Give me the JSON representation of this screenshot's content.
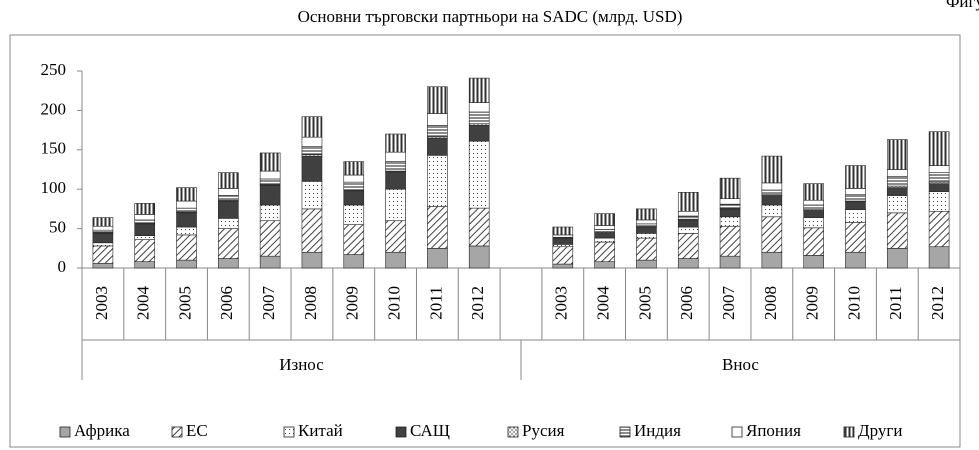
{
  "figure_label": "Фигура",
  "chart_data": {
    "type": "stacked_bar",
    "title": "Основни търговски партньори на SADC (млрд. USD)",
    "categories": [
      "2003",
      "2004",
      "2005",
      "2006",
      "2007",
      "2008",
      "2009",
      "2010",
      "2011",
      "2012",
      null,
      "2003",
      "2004",
      "2005",
      "2006",
      "2007",
      "2008",
      "2009",
      "2010",
      "2011",
      "2012"
    ],
    "groups": [
      "Износ",
      "Внос"
    ],
    "ylim": [
      0,
      250
    ],
    "yticks": [
      0,
      50,
      100,
      150,
      200,
      250
    ],
    "grid": false,
    "legend": "bottom",
    "series": [
      {
        "name": "Африка",
        "color": "#a6a6a6",
        "pattern": "solid",
        "values": [
          6,
          8,
          10,
          12,
          15,
          20,
          17,
          20,
          25,
          28,
          null,
          5,
          8,
          10,
          12,
          15,
          20,
          16,
          20,
          25,
          27
        ]
      },
      {
        "name": "ЕС",
        "color": "#404040",
        "pattern": "diagonal",
        "values": [
          22,
          28,
          32,
          38,
          45,
          55,
          38,
          40,
          53,
          48,
          null,
          22,
          25,
          28,
          32,
          38,
          45,
          35,
          38,
          45,
          45
        ]
      },
      {
        "name": "Китай",
        "color": "#404040",
        "pattern": "dots",
        "values": [
          4,
          5,
          10,
          13,
          20,
          35,
          25,
          40,
          65,
          85,
          null,
          3,
          5,
          6,
          8,
          12,
          15,
          13,
          16,
          22,
          25
        ]
      },
      {
        "name": "САЩ",
        "color": "#404040",
        "pattern": "solid",
        "values": [
          12,
          15,
          18,
          22,
          25,
          32,
          18,
          22,
          22,
          20,
          null,
          6,
          7,
          8,
          9,
          10,
          12,
          9,
          10,
          10,
          10
        ]
      },
      {
        "name": "Русия",
        "color": "#404040",
        "pattern": "crosshatch",
        "values": [
          1,
          1,
          1,
          1,
          1,
          2,
          1,
          1,
          2,
          2,
          null,
          1,
          1,
          1,
          1,
          1,
          1,
          1,
          1,
          2,
          2
        ]
      },
      {
        "name": "Индия",
        "color": "#404040",
        "pattern": "hlines",
        "values": [
          3,
          4,
          5,
          6,
          7,
          10,
          10,
          12,
          14,
          15,
          null,
          2,
          3,
          3,
          4,
          5,
          6,
          6,
          8,
          12,
          12
        ]
      },
      {
        "name": "Япония",
        "color": "#404040",
        "pattern": "blank",
        "values": [
          5,
          7,
          9,
          9,
          10,
          12,
          9,
          12,
          15,
          12,
          null,
          3,
          5,
          5,
          6,
          7,
          9,
          6,
          8,
          9,
          9
        ]
      },
      {
        "name": "Други",
        "color": "#404040",
        "pattern": "vlines",
        "values": [
          11,
          14,
          17,
          20,
          23,
          26,
          17,
          23,
          34,
          31,
          null,
          10,
          15,
          14,
          24,
          26,
          34,
          21,
          29,
          38,
          43
        ]
      }
    ]
  }
}
